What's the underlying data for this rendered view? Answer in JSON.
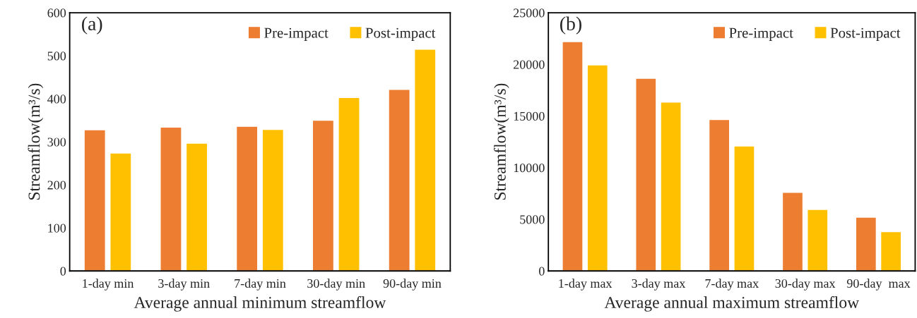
{
  "chart_data": [
    {
      "type": "bar",
      "categories": [
        "1-day min",
        "3-day min",
        "7-day min",
        "30-day min",
        "90-day min"
      ],
      "series": [
        {
          "name": "Pre-impact",
          "color": "#ed7d31",
          "values": [
            328,
            334,
            336,
            350,
            422
          ]
        },
        {
          "name": "Post-impact",
          "color": "#ffc000",
          "values": [
            274,
            297,
            329,
            403,
            515
          ]
        }
      ],
      "xlabel": "Average annual minimum streamflow",
      "ylabel": "Streamflow(m³/s)",
      "annotations": [
        "(a)"
      ],
      "ylim": [
        0,
        600
      ],
      "yticks": [
        0,
        100,
        200,
        300,
        400,
        500,
        600
      ],
      "legend": "top right",
      "grid": false
    },
    {
      "type": "bar",
      "categories": [
        "1-day max",
        "3-day max",
        "7-day max",
        "30-day max",
        "90-day  max"
      ],
      "series": [
        {
          "name": "Pre-impact",
          "color": "#ed7d31",
          "values": [
            22200,
            18650,
            14650,
            7600,
            5200
          ]
        },
        {
          "name": "Post-impact",
          "color": "#ffc000",
          "values": [
            19950,
            16350,
            12100,
            5950,
            3800
          ]
        }
      ],
      "xlabel": "Average annual maximum streamflow",
      "ylabel": "Streamflow(m³/s)",
      "annotations": [
        "(b)"
      ],
      "ylim": [
        0,
        25000
      ],
      "yticks": [
        0,
        5000,
        10000,
        15000,
        20000,
        25000
      ],
      "legend": "top right",
      "grid": false
    }
  ]
}
